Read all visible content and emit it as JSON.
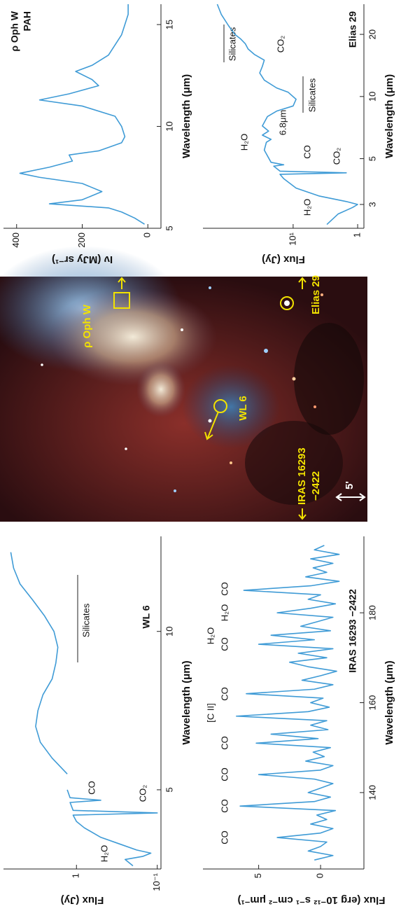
{
  "chart_data": [
    {
      "type": "line",
      "labels": [
        "WL 6"
      ],
      "xlabel": "Wavelength (μm)",
      "ylabel": "Flux (Jy)",
      "color": "#3f9bd6",
      "xlog": false,
      "ylog": true,
      "xlim": [
        2.5,
        13
      ],
      "ylim": [
        0.09,
        8
      ],
      "xticks": [
        5,
        10
      ],
      "yticks": [
        {
          "value": 0.1,
          "label": "10⁻¹"
        },
        1
      ],
      "x": [
        2.6,
        2.8,
        2.9,
        3.0,
        3.1,
        3.3,
        3.5,
        3.8,
        4.0,
        4.2,
        4.27,
        4.35,
        4.6,
        4.67,
        4.75,
        5.0,
        5.2,
        5.5,
        6.0,
        6.5,
        7.0,
        7.5,
        8.0,
        8.5,
        9.0,
        9.5,
        10.0,
        10.5,
        11.0,
        11.5,
        12.0,
        12.5
      ],
      "values": [
        0.2,
        0.25,
        0.15,
        0.12,
        0.18,
        0.3,
        0.5,
        0.8,
        1.0,
        1.1,
        0.1,
        1.1,
        1.2,
        0.5,
        1.2,
        1.3,
        null,
        1.3,
        2.0,
        2.8,
        3.2,
        3.0,
        2.6,
        2.0,
        1.8,
        1.7,
        1.9,
        2.5,
        3.5,
        5.0,
        6.0,
        6.5
      ],
      "annotations": [
        "H₂O",
        "CO",
        "CO₂",
        "Silicates"
      ]
    },
    {
      "type": "line",
      "labels": [
        "IRAS 16293 −2422"
      ],
      "xlabel": "Wavelength (μm)",
      "ylabel": "Flux (erg 10⁻¹² s⁻¹ cm⁻² μm⁻¹)",
      "color": "#3f9bd6",
      "xlog": false,
      "ylog": false,
      "xlim": [
        123,
        197
      ],
      "ylim": [
        -3.5,
        9.5
      ],
      "xticks": [
        140,
        160,
        180
      ],
      "yticks": [
        0,
        5
      ],
      "x": [
        125,
        126,
        127,
        128,
        129,
        130,
        131,
        132,
        133,
        134,
        135,
        136,
        137,
        138,
        139,
        140,
        141,
        142,
        143,
        144,
        145,
        146,
        147,
        148,
        149,
        150,
        151,
        152,
        153,
        154,
        155,
        156,
        157,
        158,
        159,
        160,
        161,
        162,
        163,
        164,
        165,
        166,
        167,
        168,
        169,
        170,
        171,
        172,
        173,
        174,
        175,
        176,
        177,
        178,
        179,
        180,
        181,
        182,
        183,
        184,
        185,
        186,
        187,
        188,
        189,
        190,
        191,
        192,
        193,
        194,
        195
      ],
      "values": [
        0.5,
        -1,
        1,
        0,
        -0.5,
        3.5,
        0,
        -1,
        0.8,
        -0.5,
        0.3,
        -1.2,
        6.5,
        0.5,
        -0.8,
        1,
        0,
        -1,
        0.5,
        5,
        0,
        -1,
        1.2,
        -0.3,
        0.6,
        -0.8,
        5.2,
        0.2,
        4,
        -0.6,
        0.8,
        -0.5,
        6.8,
        1,
        -0.7,
        0.8,
        -0.2,
        6,
        0.5,
        -1,
        1.5,
        0,
        -1.3,
        1,
        2.5,
        -0.5,
        1.8,
        -1,
        5,
        0.5,
        4,
        -0.8,
        1.6,
        0.3,
        -1,
        3.5,
        0.8,
        -1.2,
        1,
        0,
        6.2,
        0.8,
        -1.5,
        1.2,
        -0.5,
        0.6,
        -1,
        0.8,
        -1.5,
        0.5,
        -0.3
      ],
      "annotations": [
        "CO",
        "CO",
        "CO",
        "CO",
        "[C II]",
        "CO",
        "CO",
        "H₂O",
        "H₂O",
        "CO"
      ]
    },
    {
      "type": "line",
      "labels": [
        "ρ Oph W",
        "PAH"
      ],
      "xlabel": "Wavelength (μm)",
      "ylabel": "Iν (MJy sr⁻¹)",
      "color": "#3f9bd6",
      "xlog": false,
      "ylog": false,
      "xlim": [
        5,
        16
      ],
      "ylim": [
        -40,
        440
      ],
      "xticks": [
        5,
        10,
        15
      ],
      "yticks": [
        0,
        200,
        400
      ],
      "x": [
        5.2,
        5.5,
        5.8,
        6.0,
        6.2,
        6.4,
        6.8,
        7.2,
        7.5,
        7.7,
        8.0,
        8.3,
        8.6,
        8.8,
        9.2,
        9.5,
        10.0,
        10.5,
        11.0,
        11.3,
        11.6,
        12.0,
        12.3,
        12.7,
        13.0,
        13.5,
        14.0,
        14.5,
        15.0,
        15.5,
        16.0
      ],
      "values": [
        10,
        40,
        80,
        120,
        300,
        200,
        140,
        200,
        330,
        390,
        300,
        230,
        240,
        150,
        80,
        70,
        80,
        100,
        200,
        330,
        240,
        150,
        170,
        220,
        170,
        120,
        100,
        80,
        70,
        60,
        60
      ],
      "annotations": []
    },
    {
      "type": "line",
      "labels": [
        "Elias 29"
      ],
      "xlabel": "Wavelength (μm)",
      "ylabel": "Flux (Jy)",
      "color": "#3f9bd6",
      "xlog": true,
      "ylog": true,
      "xlim": [
        2.3,
        28
      ],
      "ylim": [
        0.8,
        250
      ],
      "xticks": [
        3,
        5,
        10,
        20
      ],
      "yticks": [
        1,
        {
          "value": 10,
          "label": "10¹"
        }
      ],
      "x": [
        2.4,
        2.7,
        2.9,
        3.0,
        3.1,
        3.3,
        3.6,
        4.0,
        4.2,
        4.27,
        4.35,
        4.6,
        4.67,
        4.8,
        5.5,
        6.0,
        6.2,
        6.5,
        6.8,
        7.2,
        8.0,
        8.5,
        9.0,
        9.7,
        10.5,
        11.0,
        12.0,
        13.0,
        14.0,
        15.0,
        16.0,
        17.0,
        18.0,
        19.0,
        20.0,
        22.0,
        25.0,
        28.0
      ],
      "values": [
        3,
        2,
        1.2,
        1,
        1.5,
        4,
        9,
        14,
        16,
        1.5,
        16,
        20,
        14,
        22,
        28,
        26,
        22,
        30,
        24,
        30,
        25,
        18,
        10,
        9,
        12,
        18,
        28,
        33,
        30,
        28,
        40,
        50,
        55,
        65,
        80,
        100,
        130,
        150
      ],
      "annotations": [
        "H₂O",
        "CO",
        "CO₂",
        "H₂O",
        "6.8μm",
        "Silicates",
        "CO₂",
        "Silicates"
      ]
    }
  ],
  "image": {
    "labels": [
      "ρ Oph W",
      "WL 6",
      "Elias 29",
      "IRAS 16293",
      "−2422",
      "5'"
    ]
  }
}
